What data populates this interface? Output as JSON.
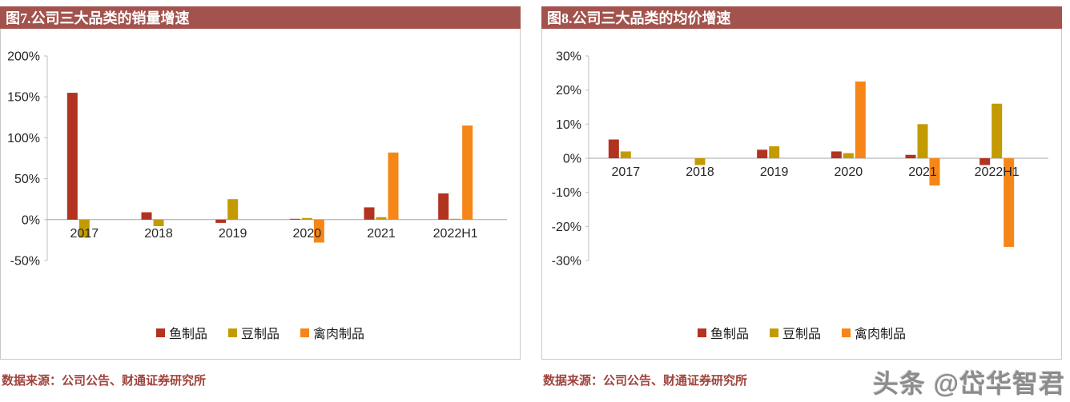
{
  "watermark": "头条 @岱华智君",
  "chart_data": [
    {
      "type": "bar",
      "title": "图7.公司三大品类的销量增速",
      "source": "数据来源：公司公告、财通证券研究所",
      "categories": [
        "2017",
        "2018",
        "2019",
        "2020",
        "2021",
        "2022H1"
      ],
      "series": [
        {
          "name": "鱼制品",
          "color": "#B2331F",
          "values": [
            155,
            9,
            -4,
            1,
            15,
            32
          ]
        },
        {
          "name": "豆制品",
          "color": "#C39B00",
          "values": [
            -22,
            -8,
            25,
            2,
            3,
            1
          ]
        },
        {
          "name": "禽肉制品",
          "color": "#F58617",
          "values": [
            0,
            0,
            0,
            -28,
            82,
            115
          ]
        }
      ],
      "ylim": [
        -50,
        200
      ],
      "yticks": [
        -50,
        0,
        50,
        100,
        150,
        200
      ],
      "ytick_suffix": "%",
      "legend_position": "bottom",
      "grid": false
    },
    {
      "type": "bar",
      "title": "图8.公司三大品类的均价增速",
      "source": "数据来源：公司公告、财通证券研究所",
      "categories": [
        "2017",
        "2018",
        "2019",
        "2020",
        "2021",
        "2022H1"
      ],
      "series": [
        {
          "name": "鱼制品",
          "color": "#B2331F",
          "values": [
            5.5,
            0,
            2.5,
            2,
            1,
            -2
          ]
        },
        {
          "name": "豆制品",
          "color": "#C39B00",
          "values": [
            2,
            -2,
            3.5,
            1.5,
            10,
            16
          ]
        },
        {
          "name": "禽肉制品",
          "color": "#F58617",
          "values": [
            0,
            0,
            0,
            22.5,
            -8,
            -26
          ]
        }
      ],
      "ylim": [
        -30,
        30
      ],
      "yticks": [
        -30,
        -20,
        -10,
        0,
        10,
        20,
        30
      ],
      "ytick_suffix": "%",
      "legend_position": "bottom",
      "grid": false
    }
  ],
  "theme": {
    "title_bar_color": "#A3534D",
    "source_text_color": "#A0433C",
    "watermark_color": "#8C8C8C"
  }
}
